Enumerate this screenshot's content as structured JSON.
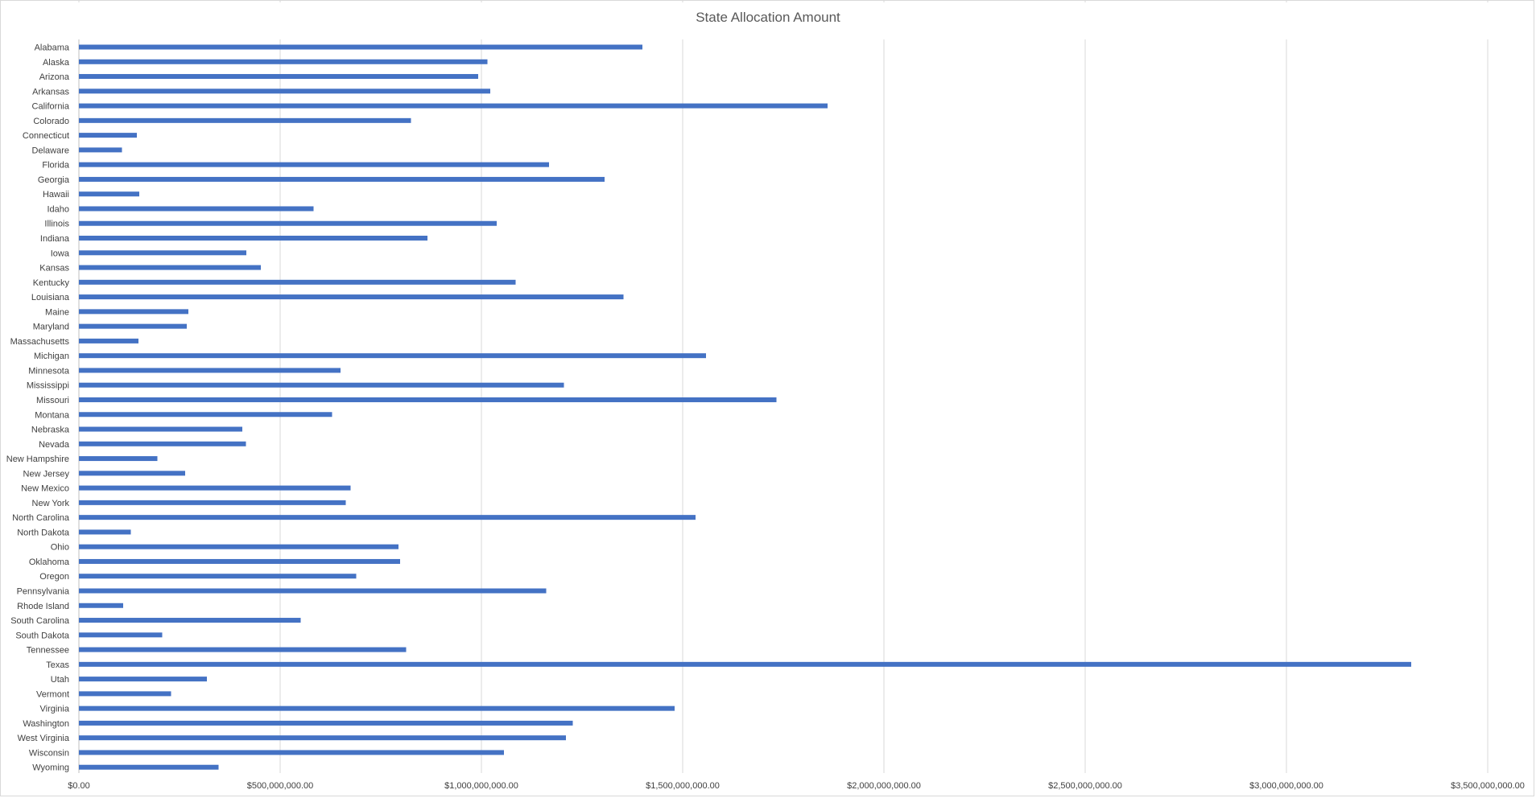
{
  "chart_data": {
    "type": "bar",
    "orientation": "horizontal",
    "title": "State Allocation Amount",
    "xlabel": "",
    "ylabel": "",
    "xlim": [
      0,
      3500000000
    ],
    "grid": "vertical",
    "legend": "none",
    "bar_color": "#4472c4",
    "categories": [
      "Alabama",
      "Alaska",
      "Arizona",
      "Arkansas",
      "California",
      "Colorado",
      "Connecticut",
      "Delaware",
      "Florida",
      "Georgia",
      "Hawaii",
      "Idaho",
      "Illinois",
      "Indiana",
      "Iowa",
      "Kansas",
      "Kentucky",
      "Louisiana",
      "Maine",
      "Maryland",
      "Massachusetts",
      "Michigan",
      "Minnesota",
      "Mississippi",
      "Missouri",
      "Montana",
      "Nebraska",
      "Nevada",
      "New Hampshire",
      "New Jersey",
      "New Mexico",
      "New York",
      "North Carolina",
      "North Dakota",
      "Ohio",
      "Oklahoma",
      "Oregon",
      "Pennsylvania",
      "Rhode Island",
      "South Carolina",
      "South Dakota",
      "Tennessee",
      "Texas",
      "Utah",
      "Vermont",
      "Virginia",
      "Washington",
      "West Virginia",
      "Wisconsin",
      "Wyoming"
    ],
    "values": [
      1400000000,
      1015000000,
      992000000,
      1022000000,
      1860000000,
      825000000,
      144000000,
      107000000,
      1168000000,
      1306000000,
      150000000,
      583000000,
      1038000000,
      866000000,
      416000000,
      452000000,
      1085000000,
      1353000000,
      272000000,
      268000000,
      148000000,
      1558000000,
      650000000,
      1205000000,
      1733000000,
      629000000,
      406000000,
      415000000,
      195000000,
      264000000,
      675000000,
      663000000,
      1532000000,
      129000000,
      794000000,
      798000000,
      689000000,
      1161000000,
      110000000,
      551000000,
      207000000,
      813000000,
      3310000000,
      318000000,
      229000000,
      1480000000,
      1227000000,
      1210000000,
      1056000000,
      347000000
    ],
    "xticks": [
      0,
      500000000,
      1000000000,
      1500000000,
      2000000000,
      2500000000,
      3000000000,
      3500000000
    ],
    "xtick_labels": [
      "$0.00",
      "$500,000,000.00",
      "$1,000,000,000.00",
      "$1,500,000,000.00",
      "$2,000,000,000.00",
      "$2,500,000,000.00",
      "$3,000,000,000.00",
      "$3,500,000,000.00"
    ]
  }
}
